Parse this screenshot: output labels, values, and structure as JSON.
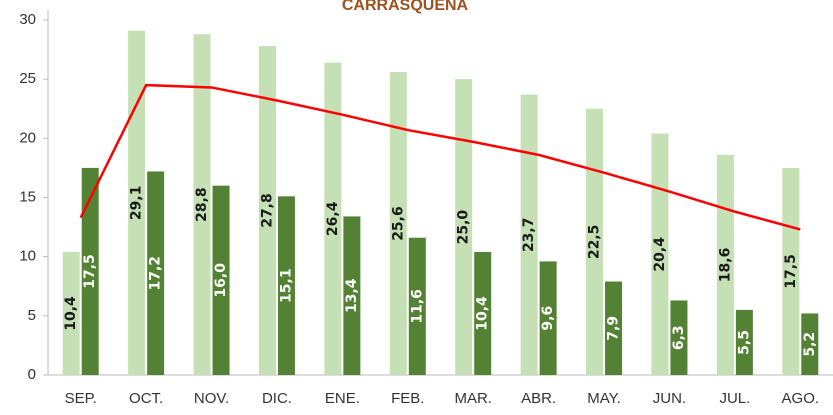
{
  "chart_data": {
    "type": "bar",
    "title": "CARRASQUEÑA",
    "categories": [
      "SEP.",
      "OCT.",
      "NOV.",
      "DIC.",
      "ENE.",
      "FEB.",
      "MAR.",
      "ABR.",
      "MAY.",
      "JUN.",
      "JUL.",
      "AGO."
    ],
    "series": [
      {
        "color": "#c5e0b4",
        "label_color": "#1a1a1a",
        "values": [
          10.4,
          29.1,
          28.8,
          27.8,
          26.4,
          25.6,
          25.0,
          23.7,
          22.5,
          20.4,
          18.6,
          17.5
        ],
        "value_labels": [
          "10,4",
          "29,1",
          "28,8",
          "27,8",
          "26,4",
          "25,6",
          "25,0",
          "23,7",
          "22,5",
          "20,4",
          "18,6",
          "17,5"
        ]
      },
      {
        "color": "#548235",
        "label_color": "#ffffff",
        "values": [
          17.5,
          17.2,
          16.0,
          15.1,
          13.4,
          11.6,
          10.4,
          9.6,
          7.9,
          6.3,
          5.5,
          5.2
        ],
        "value_labels": [
          "17,5",
          "17,2",
          "16,0",
          "15,1",
          "13,4",
          "11,6",
          "10,4",
          "9,6",
          "7,9",
          "6,3",
          "5,5",
          "5,2"
        ]
      },
      {
        "type": "line",
        "color": "#ff0000",
        "values": [
          13.3,
          24.5,
          24.3,
          23.2,
          22.0,
          20.7,
          19.7,
          18.6,
          17.1,
          15.5,
          13.8,
          12.3
        ]
      }
    ],
    "ylim": [
      0,
      30
    ],
    "yticks": [
      0,
      5,
      10,
      15,
      20,
      25,
      30
    ]
  }
}
